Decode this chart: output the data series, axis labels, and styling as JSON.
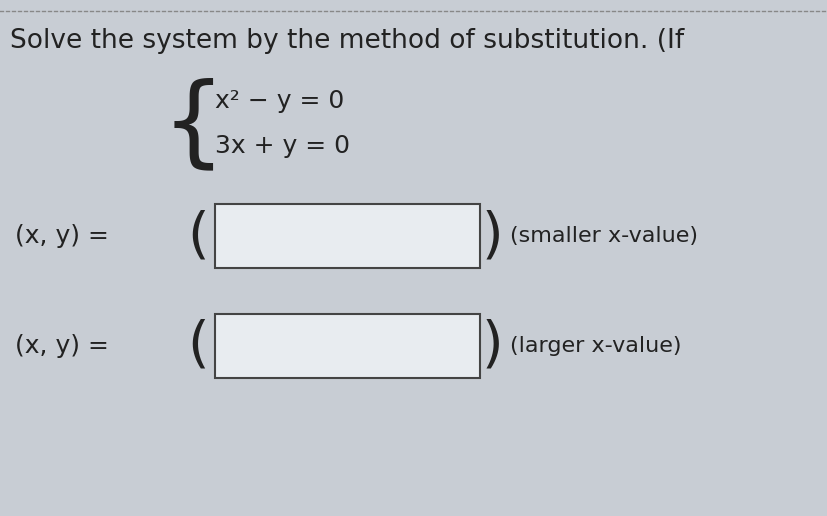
{
  "background_color": "#c8cdd4",
  "top_border_color": "#888888",
  "title_text": "Solve the system by the method of substitution. (If",
  "title_fontsize": 19,
  "eq1": "x² − y = 0",
  "eq2": "3x + y = 0",
  "eq_fontsize": 18,
  "label1": "(x, y) =",
  "label2": "(x, y) =",
  "label_fontsize": 18,
  "note1": "(smaller x-value)",
  "note2": "(larger x-value)",
  "note_fontsize": 16,
  "box_facecolor": "#e8ecf0",
  "box_edgecolor": "#444444",
  "paren_fontsize": 40,
  "brace_fontsize": 36,
  "text_color": "#222222"
}
